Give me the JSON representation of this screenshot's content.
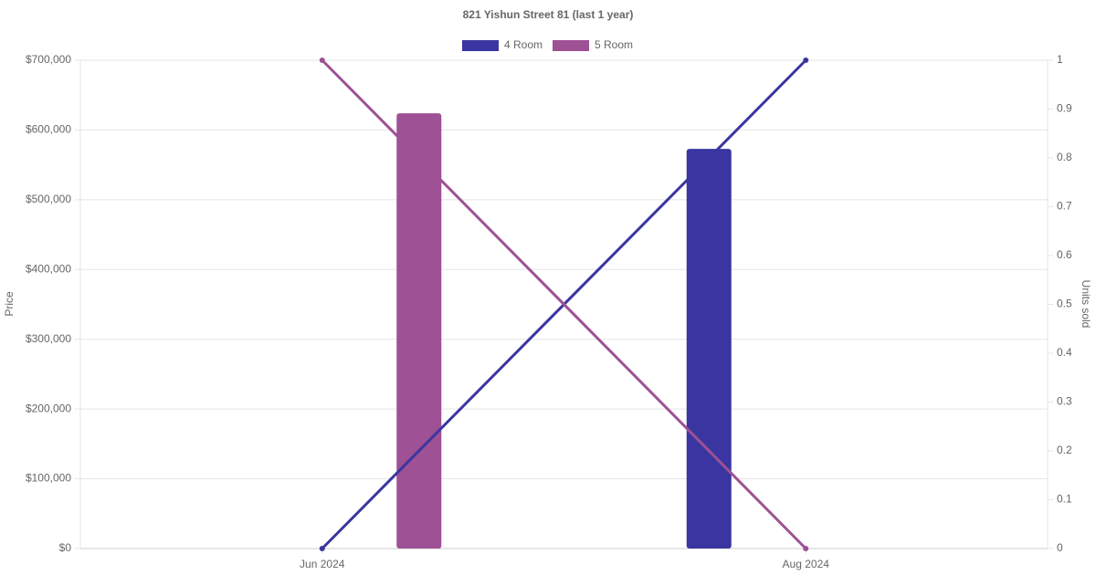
{
  "chart_data": {
    "type": "bar-line",
    "title": "821 Yishun Street 81 (last 1 year)",
    "categories": [
      "Jun 2024",
      "Aug 2024"
    ],
    "series": [
      {
        "name": "4 Room",
        "color": "#3a35a0",
        "values": [
          null,
          573000
        ],
        "units": [
          0,
          1
        ]
      },
      {
        "name": "5 Room",
        "color": "#9e5194",
        "values": [
          624000,
          null
        ],
        "units": [
          1,
          0
        ]
      }
    ],
    "ylabel": "Price",
    "y2label": "Units sold",
    "ylim": [
      0,
      700000
    ],
    "yticks": [
      {
        "value": 0,
        "label": "$0"
      },
      {
        "value": 100000,
        "label": "$100,000"
      },
      {
        "value": 200000,
        "label": "$200,000"
      },
      {
        "value": 300000,
        "label": "$300,000"
      },
      {
        "value": 400000,
        "label": "$400,000"
      },
      {
        "value": 500000,
        "label": "$500,000"
      },
      {
        "value": 600000,
        "label": "$600,000"
      },
      {
        "value": 700000,
        "label": "$700,000"
      }
    ],
    "y2lim": [
      0,
      1
    ],
    "y2ticks": [
      0,
      0.1,
      0.2,
      0.3,
      0.4,
      0.5,
      0.6,
      0.7,
      0.8,
      0.9,
      1
    ],
    "grid": true,
    "legend": "top"
  }
}
